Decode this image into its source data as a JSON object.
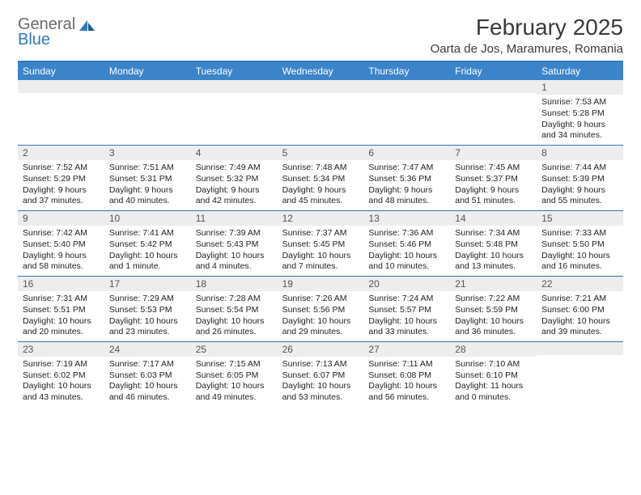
{
  "brand": {
    "general": "General",
    "blue": "Blue"
  },
  "title": "February 2025",
  "location": "Oarta de Jos, Maramures, Romania",
  "colors": {
    "accent": "#3b84c9",
    "divider": "#2f78c0",
    "daynum_bg": "#ededed",
    "text": "#3a3a3a"
  },
  "weekdays": [
    "Sunday",
    "Monday",
    "Tuesday",
    "Wednesday",
    "Thursday",
    "Friday",
    "Saturday"
  ],
  "weeks": [
    [
      {
        "n": "",
        "sr": "",
        "ss": "",
        "dl": ""
      },
      {
        "n": "",
        "sr": "",
        "ss": "",
        "dl": ""
      },
      {
        "n": "",
        "sr": "",
        "ss": "",
        "dl": ""
      },
      {
        "n": "",
        "sr": "",
        "ss": "",
        "dl": ""
      },
      {
        "n": "",
        "sr": "",
        "ss": "",
        "dl": ""
      },
      {
        "n": "",
        "sr": "",
        "ss": "",
        "dl": ""
      },
      {
        "n": "1",
        "sr": "Sunrise: 7:53 AM",
        "ss": "Sunset: 5:28 PM",
        "dl": "Daylight: 9 hours and 34 minutes."
      }
    ],
    [
      {
        "n": "2",
        "sr": "Sunrise: 7:52 AM",
        "ss": "Sunset: 5:29 PM",
        "dl": "Daylight: 9 hours and 37 minutes."
      },
      {
        "n": "3",
        "sr": "Sunrise: 7:51 AM",
        "ss": "Sunset: 5:31 PM",
        "dl": "Daylight: 9 hours and 40 minutes."
      },
      {
        "n": "4",
        "sr": "Sunrise: 7:49 AM",
        "ss": "Sunset: 5:32 PM",
        "dl": "Daylight: 9 hours and 42 minutes."
      },
      {
        "n": "5",
        "sr": "Sunrise: 7:48 AM",
        "ss": "Sunset: 5:34 PM",
        "dl": "Daylight: 9 hours and 45 minutes."
      },
      {
        "n": "6",
        "sr": "Sunrise: 7:47 AM",
        "ss": "Sunset: 5:36 PM",
        "dl": "Daylight: 9 hours and 48 minutes."
      },
      {
        "n": "7",
        "sr": "Sunrise: 7:45 AM",
        "ss": "Sunset: 5:37 PM",
        "dl": "Daylight: 9 hours and 51 minutes."
      },
      {
        "n": "8",
        "sr": "Sunrise: 7:44 AM",
        "ss": "Sunset: 5:39 PM",
        "dl": "Daylight: 9 hours and 55 minutes."
      }
    ],
    [
      {
        "n": "9",
        "sr": "Sunrise: 7:42 AM",
        "ss": "Sunset: 5:40 PM",
        "dl": "Daylight: 9 hours and 58 minutes."
      },
      {
        "n": "10",
        "sr": "Sunrise: 7:41 AM",
        "ss": "Sunset: 5:42 PM",
        "dl": "Daylight: 10 hours and 1 minute."
      },
      {
        "n": "11",
        "sr": "Sunrise: 7:39 AM",
        "ss": "Sunset: 5:43 PM",
        "dl": "Daylight: 10 hours and 4 minutes."
      },
      {
        "n": "12",
        "sr": "Sunrise: 7:37 AM",
        "ss": "Sunset: 5:45 PM",
        "dl": "Daylight: 10 hours and 7 minutes."
      },
      {
        "n": "13",
        "sr": "Sunrise: 7:36 AM",
        "ss": "Sunset: 5:46 PM",
        "dl": "Daylight: 10 hours and 10 minutes."
      },
      {
        "n": "14",
        "sr": "Sunrise: 7:34 AM",
        "ss": "Sunset: 5:48 PM",
        "dl": "Daylight: 10 hours and 13 minutes."
      },
      {
        "n": "15",
        "sr": "Sunrise: 7:33 AM",
        "ss": "Sunset: 5:50 PM",
        "dl": "Daylight: 10 hours and 16 minutes."
      }
    ],
    [
      {
        "n": "16",
        "sr": "Sunrise: 7:31 AM",
        "ss": "Sunset: 5:51 PM",
        "dl": "Daylight: 10 hours and 20 minutes."
      },
      {
        "n": "17",
        "sr": "Sunrise: 7:29 AM",
        "ss": "Sunset: 5:53 PM",
        "dl": "Daylight: 10 hours and 23 minutes."
      },
      {
        "n": "18",
        "sr": "Sunrise: 7:28 AM",
        "ss": "Sunset: 5:54 PM",
        "dl": "Daylight: 10 hours and 26 minutes."
      },
      {
        "n": "19",
        "sr": "Sunrise: 7:26 AM",
        "ss": "Sunset: 5:56 PM",
        "dl": "Daylight: 10 hours and 29 minutes."
      },
      {
        "n": "20",
        "sr": "Sunrise: 7:24 AM",
        "ss": "Sunset: 5:57 PM",
        "dl": "Daylight: 10 hours and 33 minutes."
      },
      {
        "n": "21",
        "sr": "Sunrise: 7:22 AM",
        "ss": "Sunset: 5:59 PM",
        "dl": "Daylight: 10 hours and 36 minutes."
      },
      {
        "n": "22",
        "sr": "Sunrise: 7:21 AM",
        "ss": "Sunset: 6:00 PM",
        "dl": "Daylight: 10 hours and 39 minutes."
      }
    ],
    [
      {
        "n": "23",
        "sr": "Sunrise: 7:19 AM",
        "ss": "Sunset: 6:02 PM",
        "dl": "Daylight: 10 hours and 43 minutes."
      },
      {
        "n": "24",
        "sr": "Sunrise: 7:17 AM",
        "ss": "Sunset: 6:03 PM",
        "dl": "Daylight: 10 hours and 46 minutes."
      },
      {
        "n": "25",
        "sr": "Sunrise: 7:15 AM",
        "ss": "Sunset: 6:05 PM",
        "dl": "Daylight: 10 hours and 49 minutes."
      },
      {
        "n": "26",
        "sr": "Sunrise: 7:13 AM",
        "ss": "Sunset: 6:07 PM",
        "dl": "Daylight: 10 hours and 53 minutes."
      },
      {
        "n": "27",
        "sr": "Sunrise: 7:11 AM",
        "ss": "Sunset: 6:08 PM",
        "dl": "Daylight: 10 hours and 56 minutes."
      },
      {
        "n": "28",
        "sr": "Sunrise: 7:10 AM",
        "ss": "Sunset: 6:10 PM",
        "dl": "Daylight: 11 hours and 0 minutes."
      },
      {
        "n": "",
        "sr": "",
        "ss": "",
        "dl": ""
      }
    ]
  ]
}
